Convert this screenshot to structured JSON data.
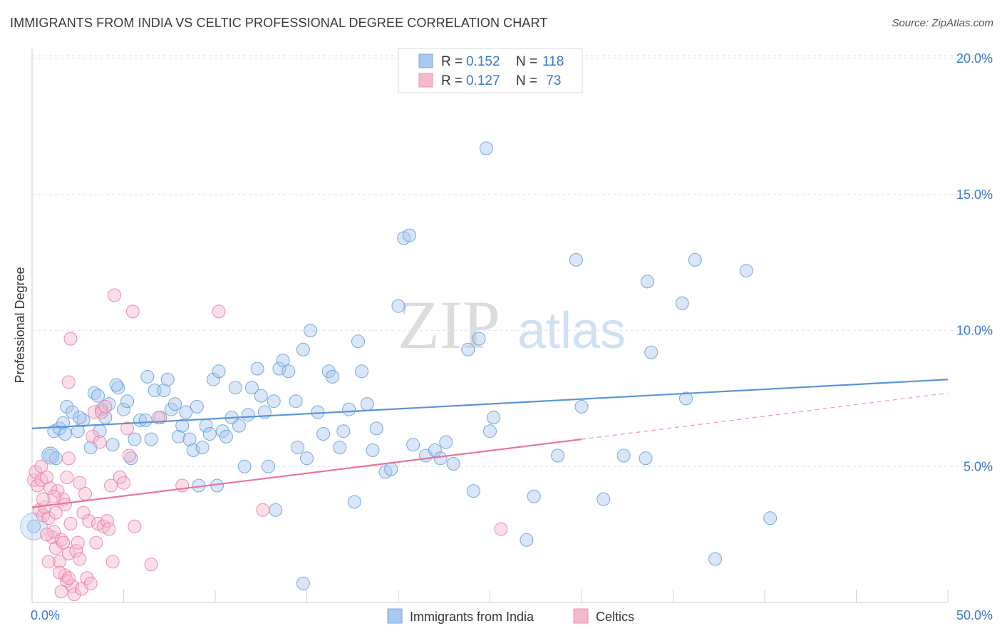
{
  "title": "IMMIGRANTS FROM INDIA VS CELTIC PROFESSIONAL DEGREE CORRELATION CHART",
  "source": "Source: ZipAtlas.com",
  "watermark": {
    "zip": "ZIP",
    "atlas": "atlas"
  },
  "stats_box": {
    "rows": [
      {
        "r_label": "R =",
        "r_value": "0.152",
        "n_label": "N =",
        "n_value": "118",
        "color": "#a9c8f0"
      },
      {
        "r_label": "R =",
        "r_value": "0.127",
        "n_label": "N =",
        "n_value": " 73",
        "color": "#f6b8cb"
      }
    ]
  },
  "legend": [
    {
      "label": "Immigrants from India",
      "color": "#a9c8f0"
    },
    {
      "label": "Celtics",
      "color": "#f6b8cb"
    }
  ],
  "chart_data": {
    "type": "scatter",
    "title": "IMMIGRANTS FROM INDIA VS CELTIC PROFESSIONAL DEGREE CORRELATION CHART",
    "xlabel": "",
    "ylabel": "Professional Degree",
    "xlim": [
      0,
      50
    ],
    "ylim": [
      0,
      21
    ],
    "x_tick_labels": [
      "0.0%",
      "50.0%"
    ],
    "y_ticks": [
      5,
      10,
      15,
      20
    ],
    "y_tick_labels": [
      "5.0%",
      "10.0%",
      "15.0%",
      "20.0%"
    ],
    "grid": "horizontal dashed",
    "legend_position": "bottom-center",
    "series": [
      {
        "name": "Immigrants from India",
        "color": "#5b95d8",
        "fill": "#a9c8f0",
        "r": "0.152",
        "n": "118",
        "trend": {
          "x": [
            0,
            50
          ],
          "y": [
            6.4,
            8.2
          ],
          "style": "solid"
        },
        "points": [
          [
            0.1,
            2.8
          ],
          [
            1.0,
            5.4
          ],
          [
            1.2,
            6.3
          ],
          [
            1.5,
            6.4
          ],
          [
            1.7,
            6.6
          ],
          [
            1.8,
            6.2
          ],
          [
            1.9,
            7.2
          ],
          [
            2.2,
            7.0
          ],
          [
            2.5,
            6.3
          ],
          [
            2.8,
            6.7
          ],
          [
            3.2,
            5.7
          ],
          [
            3.4,
            7.7
          ],
          [
            3.6,
            7.6
          ],
          [
            3.8,
            7.1
          ],
          [
            4.0,
            6.8
          ],
          [
            4.2,
            7.3
          ],
          [
            4.4,
            5.8
          ],
          [
            4.7,
            7.9
          ],
          [
            5.0,
            7.1
          ],
          [
            5.2,
            7.4
          ],
          [
            5.4,
            5.3
          ],
          [
            5.6,
            6.0
          ],
          [
            5.9,
            6.7
          ],
          [
            6.2,
            6.7
          ],
          [
            6.3,
            8.3
          ],
          [
            6.5,
            6.0
          ],
          [
            6.7,
            7.8
          ],
          [
            7.0,
            6.8
          ],
          [
            7.2,
            7.8
          ],
          [
            7.4,
            8.2
          ],
          [
            7.6,
            7.1
          ],
          [
            7.8,
            7.3
          ],
          [
            8.0,
            6.1
          ],
          [
            8.2,
            6.5
          ],
          [
            8.4,
            7.0
          ],
          [
            8.6,
            6.0
          ],
          [
            8.8,
            5.6
          ],
          [
            9.0,
            7.2
          ],
          [
            9.3,
            5.7
          ],
          [
            9.5,
            6.5
          ],
          [
            9.7,
            6.2
          ],
          [
            9.9,
            8.2
          ],
          [
            10.2,
            8.5
          ],
          [
            10.4,
            6.3
          ],
          [
            10.6,
            6.1
          ],
          [
            10.9,
            6.8
          ],
          [
            11.1,
            7.9
          ],
          [
            11.3,
            6.5
          ],
          [
            11.6,
            5.0
          ],
          [
            11.8,
            6.9
          ],
          [
            12.0,
            7.9
          ],
          [
            12.3,
            8.6
          ],
          [
            12.5,
            7.6
          ],
          [
            12.7,
            7.0
          ],
          [
            12.9,
            5.0
          ],
          [
            13.2,
            7.4
          ],
          [
            13.5,
            8.6
          ],
          [
            13.7,
            8.9
          ],
          [
            14.0,
            8.5
          ],
          [
            14.4,
            7.4
          ],
          [
            14.8,
            9.3
          ],
          [
            15.0,
            5.3
          ],
          [
            15.2,
            10.0
          ],
          [
            15.6,
            7.0
          ],
          [
            15.9,
            6.2
          ],
          [
            16.2,
            8.5
          ],
          [
            16.4,
            8.3
          ],
          [
            16.8,
            5.7
          ],
          [
            17.0,
            6.3
          ],
          [
            17.3,
            7.1
          ],
          [
            17.6,
            3.7
          ],
          [
            17.8,
            9.6
          ],
          [
            18.0,
            8.5
          ],
          [
            18.3,
            7.3
          ],
          [
            18.6,
            5.6
          ],
          [
            18.8,
            6.4
          ],
          [
            19.3,
            4.8
          ],
          [
            19.6,
            4.9
          ],
          [
            20.0,
            10.9
          ],
          [
            20.3,
            13.4
          ],
          [
            20.6,
            13.5
          ],
          [
            20.8,
            5.8
          ],
          [
            21.5,
            5.4
          ],
          [
            22.0,
            5.6
          ],
          [
            22.3,
            5.3
          ],
          [
            22.6,
            5.9
          ],
          [
            23.0,
            5.1
          ],
          [
            23.8,
            9.3
          ],
          [
            24.1,
            4.1
          ],
          [
            24.4,
            9.7
          ],
          [
            25.0,
            6.3
          ],
          [
            25.2,
            6.8
          ],
          [
            24.8,
            16.7
          ],
          [
            27.0,
            2.3
          ],
          [
            28.7,
            5.4
          ],
          [
            29.7,
            12.6
          ],
          [
            30.0,
            7.2
          ],
          [
            31.2,
            3.8
          ],
          [
            32.3,
            5.4
          ],
          [
            33.5,
            5.3
          ],
          [
            33.6,
            11.8
          ],
          [
            33.8,
            9.2
          ],
          [
            35.5,
            11.0
          ],
          [
            35.7,
            7.5
          ],
          [
            36.2,
            12.6
          ],
          [
            37.3,
            1.6
          ],
          [
            39.0,
            12.2
          ],
          [
            40.3,
            3.1
          ],
          [
            14.8,
            0.7
          ],
          [
            14.5,
            5.7
          ],
          [
            13.3,
            3.4
          ],
          [
            10.1,
            4.3
          ],
          [
            9.1,
            4.3
          ],
          [
            27.4,
            3.9
          ],
          [
            4.6,
            8.0
          ],
          [
            3.7,
            6.3
          ],
          [
            2.6,
            6.8
          ],
          [
            1.3,
            5.3
          ]
        ]
      },
      {
        "name": "Celtics",
        "color": "#e9739d",
        "fill": "#f6b8cb",
        "r": "0.127",
        "n": "73",
        "trend": {
          "x": [
            0,
            30
          ],
          "y": [
            3.5,
            6.0
          ],
          "style": "solid"
        },
        "trend_extension": {
          "x": [
            30,
            50
          ],
          "y": [
            6.0,
            7.7
          ],
          "style": "dashed"
        },
        "points": [
          [
            0.1,
            4.5
          ],
          [
            0.2,
            4.8
          ],
          [
            0.3,
            4.3
          ],
          [
            0.4,
            3.4
          ],
          [
            0.5,
            4.5
          ],
          [
            0.6,
            3.2
          ],
          [
            0.7,
            3.5
          ],
          [
            0.8,
            4.6
          ],
          [
            0.9,
            3.1
          ],
          [
            1.0,
            4.2
          ],
          [
            1.1,
            2.4
          ],
          [
            1.2,
            2.6
          ],
          [
            1.3,
            2.0
          ],
          [
            1.4,
            4.1
          ],
          [
            1.5,
            1.5
          ],
          [
            1.6,
            2.3
          ],
          [
            1.7,
            3.8
          ],
          [
            1.8,
            1.0
          ],
          [
            1.9,
            0.8
          ],
          [
            2.0,
            1.8
          ],
          [
            2.1,
            2.9
          ],
          [
            2.2,
            0.6
          ],
          [
            1.6,
            0.4
          ],
          [
            1.5,
            1.1
          ],
          [
            2.0,
            0.9
          ],
          [
            2.3,
            0.3
          ],
          [
            2.4,
            1.9
          ],
          [
            2.5,
            2.2
          ],
          [
            2.6,
            1.6
          ],
          [
            2.7,
            0.5
          ],
          [
            2.8,
            3.3
          ],
          [
            2.9,
            4.0
          ],
          [
            3.0,
            0.9
          ],
          [
            3.1,
            3.0
          ],
          [
            3.2,
            0.7
          ],
          [
            3.3,
            6.1
          ],
          [
            3.4,
            7.0
          ],
          [
            3.5,
            2.2
          ],
          [
            3.6,
            2.9
          ],
          [
            3.7,
            5.9
          ],
          [
            3.8,
            7.0
          ],
          [
            3.9,
            2.8
          ],
          [
            4.0,
            7.2
          ],
          [
            4.1,
            3.0
          ],
          [
            4.2,
            2.7
          ],
          [
            4.3,
            4.3
          ],
          [
            4.4,
            1.5
          ],
          [
            4.5,
            11.3
          ],
          [
            4.8,
            4.6
          ],
          [
            5.0,
            4.4
          ],
          [
            5.2,
            6.4
          ],
          [
            5.3,
            5.4
          ],
          [
            5.5,
            10.7
          ],
          [
            5.6,
            2.8
          ],
          [
            6.5,
            1.4
          ],
          [
            6.9,
            6.8
          ],
          [
            8.2,
            4.3
          ],
          [
            10.2,
            10.7
          ],
          [
            12.6,
            3.4
          ],
          [
            25.6,
            2.7
          ],
          [
            2.1,
            9.7
          ],
          [
            2.0,
            8.1
          ],
          [
            2.0,
            5.3
          ],
          [
            1.9,
            4.6
          ],
          [
            0.5,
            5.0
          ],
          [
            1.8,
            3.6
          ],
          [
            0.8,
            2.5
          ],
          [
            1.2,
            3.9
          ],
          [
            0.6,
            3.8
          ],
          [
            1.3,
            3.3
          ],
          [
            2.6,
            4.4
          ],
          [
            0.9,
            1.5
          ],
          [
            1.7,
            2.2
          ]
        ]
      }
    ]
  }
}
